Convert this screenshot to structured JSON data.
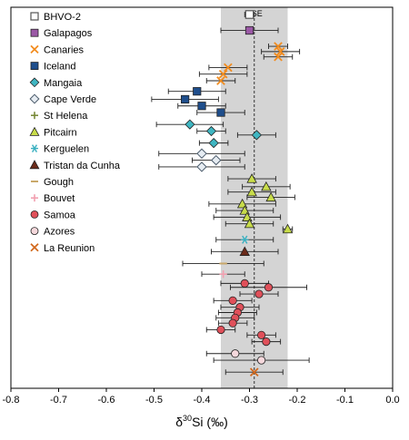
{
  "chart_data": {
    "type": "scatter",
    "xlabel": "δ30Si (‰)",
    "xlabel_parts": {
      "delta": "δ",
      "sup": "30",
      "rest": "Si (‰)"
    },
    "xlim": [
      -0.8,
      0.0
    ],
    "xticks": [
      "-0.8",
      "-0.7",
      "-0.6",
      "-0.5",
      "-0.4",
      "-0.3",
      "-0.2",
      "-0.1",
      "0.0"
    ],
    "xtick_values": [
      -0.8,
      -0.7,
      -0.6,
      -0.5,
      -0.4,
      -0.3,
      -0.2,
      -0.1,
      0.0
    ],
    "grid": false,
    "legend_placement": "top-left",
    "bse": {
      "label": "BSE",
      "value": -0.29,
      "range": [
        -0.36,
        -0.22
      ],
      "band_color": "#d4d4d4"
    },
    "series": [
      {
        "name": "BHVO-2",
        "marker": "square-open",
        "color": "#555555",
        "points": [
          {
            "x": -0.3,
            "err": 0.01,
            "row": 1
          }
        ]
      },
      {
        "name": "Galapagos",
        "marker": "square",
        "color": "#9b59a6",
        "points": [
          {
            "x": -0.3,
            "err": 0.06,
            "row": 2.2
          }
        ]
      },
      {
        "name": "Canaries",
        "marker": "x",
        "color": "#f28c1e",
        "points": [
          {
            "x": -0.24,
            "err": 0.02,
            "row": 3.4
          },
          {
            "x": -0.235,
            "err": 0.04,
            "row": 3.8
          },
          {
            "x": -0.24,
            "err": 0.03,
            "row": 4.2
          },
          {
            "x": -0.345,
            "err": 0.04,
            "row": 5.0
          },
          {
            "x": -0.355,
            "err": 0.05,
            "row": 5.5
          },
          {
            "x": -0.36,
            "err": 0.03,
            "row": 6.0
          }
        ]
      },
      {
        "name": "Iceland",
        "marker": "square",
        "color": "#1f4e8c",
        "points": [
          {
            "x": -0.41,
            "err": 0.06,
            "row": 6.8
          },
          {
            "x": -0.435,
            "err": 0.07,
            "row": 7.4
          },
          {
            "x": -0.4,
            "err": 0.05,
            "row": 7.9
          },
          {
            "x": -0.36,
            "err": 0.05,
            "row": 8.4
          }
        ]
      },
      {
        "name": "Mangaia",
        "marker": "diamond",
        "color": "#3fb6c2",
        "points": [
          {
            "x": -0.425,
            "err": 0.07,
            "row": 9.3
          },
          {
            "x": -0.38,
            "err": 0.03,
            "row": 9.8
          },
          {
            "x": -0.285,
            "err": 0.04,
            "row": 10.1
          },
          {
            "x": -0.375,
            "err": 0.03,
            "row": 10.7
          }
        ]
      },
      {
        "name": "Cape Verde",
        "marker": "diamond-open",
        "color": "#4a5a6a",
        "points": [
          {
            "x": -0.4,
            "err": 0.09,
            "row": 11.5
          },
          {
            "x": -0.37,
            "err": 0.05,
            "row": 12.0
          },
          {
            "x": -0.4,
            "err": 0.09,
            "row": 12.5
          }
        ]
      },
      {
        "name": "St Helena",
        "marker": "plus",
        "color": "#7a8a3a",
        "points": []
      },
      {
        "name": "Pitcairn",
        "marker": "triangle",
        "color": "#c8dc4a",
        "points": [
          {
            "x": -0.295,
            "err": 0.05,
            "row": 13.4
          },
          {
            "x": -0.265,
            "err": 0.05,
            "row": 14.0
          },
          {
            "x": -0.295,
            "err": 0.05,
            "row": 14.4
          },
          {
            "x": -0.255,
            "err": 0.05,
            "row": 14.8
          },
          {
            "x": -0.315,
            "err": 0.07,
            "row": 15.3
          },
          {
            "x": -0.31,
            "err": 0.06,
            "row": 15.8
          },
          {
            "x": -0.305,
            "err": 0.07,
            "row": 16.3
          },
          {
            "x": -0.3,
            "err": 0.05,
            "row": 16.8
          },
          {
            "x": -0.22,
            "err": 0.01,
            "row": 17.2
          }
        ]
      },
      {
        "name": "Kerguelen",
        "marker": "asterisk",
        "color": "#3ab0c0",
        "points": [
          {
            "x": -0.31,
            "err": 0.06,
            "row": 18.0
          }
        ]
      },
      {
        "name": "Tristan da Cunha",
        "marker": "triangle",
        "color": "#6b2a1a",
        "points": [
          {
            "x": -0.31,
            "err": 0.07,
            "row": 18.9
          }
        ]
      },
      {
        "name": "Gough",
        "marker": "dash",
        "color": "#c9a86a",
        "points": [
          {
            "x": -0.355,
            "err": 0.085,
            "row": 19.8
          }
        ]
      },
      {
        "name": "Bouvet",
        "marker": "plus",
        "color": "#f2a0b0",
        "points": [
          {
            "x": -0.355,
            "err": 0.045,
            "row": 20.6
          }
        ]
      },
      {
        "name": "Samoa",
        "marker": "circle",
        "color": "#e0505a",
        "points": [
          {
            "x": -0.31,
            "err": 0.05,
            "row": 21.3
          },
          {
            "x": -0.26,
            "err": 0.08,
            "row": 21.6
          },
          {
            "x": -0.28,
            "err": 0.04,
            "row": 22.1
          },
          {
            "x": -0.335,
            "err": 0.04,
            "row": 22.6
          },
          {
            "x": -0.32,
            "err": 0.04,
            "row": 23.1
          },
          {
            "x": -0.325,
            "err": 0.04,
            "row": 23.5
          },
          {
            "x": -0.33,
            "err": 0.04,
            "row": 23.9
          },
          {
            "x": -0.335,
            "err": 0.03,
            "row": 24.3
          },
          {
            "x": -0.36,
            "err": 0.03,
            "row": 24.8
          },
          {
            "x": -0.275,
            "err": 0.03,
            "row": 25.2
          },
          {
            "x": -0.265,
            "err": 0.03,
            "row": 25.7
          }
        ]
      },
      {
        "name": "Azores",
        "marker": "circle-open",
        "color": "#f5d8dc",
        "points": [
          {
            "x": -0.33,
            "err": 0.06,
            "row": 26.6
          },
          {
            "x": -0.275,
            "err": 0.1,
            "row": 27.1
          }
        ]
      },
      {
        "name": "La Reunion",
        "marker": "x",
        "color": "#d2691e",
        "points": [
          {
            "x": -0.29,
            "err": 0.06,
            "row": 28.0
          }
        ]
      }
    ]
  }
}
